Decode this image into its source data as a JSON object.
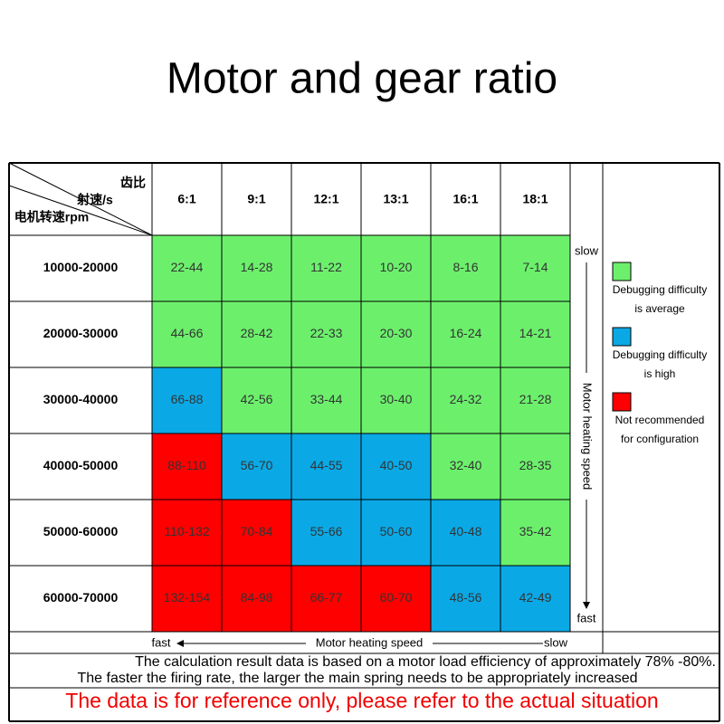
{
  "title": "Motor and gear ratio",
  "table": {
    "corner": [
      "齿比",
      "射速/s",
      "电机转速rpm"
    ],
    "columns": [
      "6:1",
      "9:1",
      "12:1",
      "13:1",
      "16:1",
      "18:1"
    ],
    "colors": {
      "average": "#6cf06c",
      "high": "#0aa9e6",
      "not_recommended": "#ff0000"
    },
    "rows": [
      {
        "label": "10000-20000",
        "cells": [
          {
            "text": "22-44",
            "level": "average"
          },
          {
            "text": "14-28",
            "level": "average"
          },
          {
            "text": "11-22",
            "level": "average"
          },
          {
            "text": "10-20",
            "level": "average"
          },
          {
            "text": "8-16",
            "level": "average"
          },
          {
            "text": "7-14",
            "level": "average"
          }
        ]
      },
      {
        "label": "20000-30000",
        "cells": [
          {
            "text": "44-66",
            "level": "average"
          },
          {
            "text": "28-42",
            "level": "average"
          },
          {
            "text": "22-33",
            "level": "average"
          },
          {
            "text": "20-30",
            "level": "average"
          },
          {
            "text": "16-24",
            "level": "average"
          },
          {
            "text": "14-21",
            "level": "average"
          }
        ]
      },
      {
        "label": "30000-40000",
        "cells": [
          {
            "text": "66-88",
            "level": "high"
          },
          {
            "text": "42-56",
            "level": "average"
          },
          {
            "text": "33-44",
            "level": "average"
          },
          {
            "text": "30-40",
            "level": "average"
          },
          {
            "text": "24-32",
            "level": "average"
          },
          {
            "text": "21-28",
            "level": "average"
          }
        ]
      },
      {
        "label": "40000-50000",
        "cells": [
          {
            "text": "88-110",
            "level": "not_recommended"
          },
          {
            "text": "56-70",
            "level": "high"
          },
          {
            "text": "44-55",
            "level": "high"
          },
          {
            "text": "40-50",
            "level": "high"
          },
          {
            "text": "32-40",
            "level": "average"
          },
          {
            "text": "28-35",
            "level": "average"
          }
        ]
      },
      {
        "label": "50000-60000",
        "cells": [
          {
            "text": "110-132",
            "level": "not_recommended"
          },
          {
            "text": "70-84",
            "level": "not_recommended"
          },
          {
            "text": "55-66",
            "level": "high"
          },
          {
            "text": "50-60",
            "level": "high"
          },
          {
            "text": "40-48",
            "level": "high"
          },
          {
            "text": "35-42",
            "level": "average"
          }
        ]
      },
      {
        "label": "60000-70000",
        "cells": [
          {
            "text": "132-154",
            "level": "not_recommended"
          },
          {
            "text": "84-98",
            "level": "not_recommended"
          },
          {
            "text": "66-77",
            "level": "not_recommended"
          },
          {
            "text": "60-70",
            "level": "not_recommended"
          },
          {
            "text": "48-56",
            "level": "high"
          },
          {
            "text": "42-49",
            "level": "high"
          }
        ]
      }
    ]
  },
  "vertical_axis": {
    "top": "slow",
    "label": "Motor heating speed",
    "bottom": "fast"
  },
  "horizontal_axis": {
    "left": "fast",
    "label": "Motor heating speed",
    "right": "slow"
  },
  "legend": [
    {
      "level": "average",
      "lines": [
        "Debugging difficulty",
        "is average"
      ]
    },
    {
      "level": "high",
      "lines": [
        "Debugging difficulty",
        "is high"
      ]
    },
    {
      "level": "not_recommended",
      "lines": [
        "Not recommended",
        "for configuration"
      ]
    }
  ],
  "notes": [
    "The calculation result data is based on a motor load efficiency of approximately 78% -80%.",
    "The faster the firing rate, the larger the main spring needs to be appropriately increased"
  ],
  "warning": "The data is for reference only, please refer to the actual situation"
}
